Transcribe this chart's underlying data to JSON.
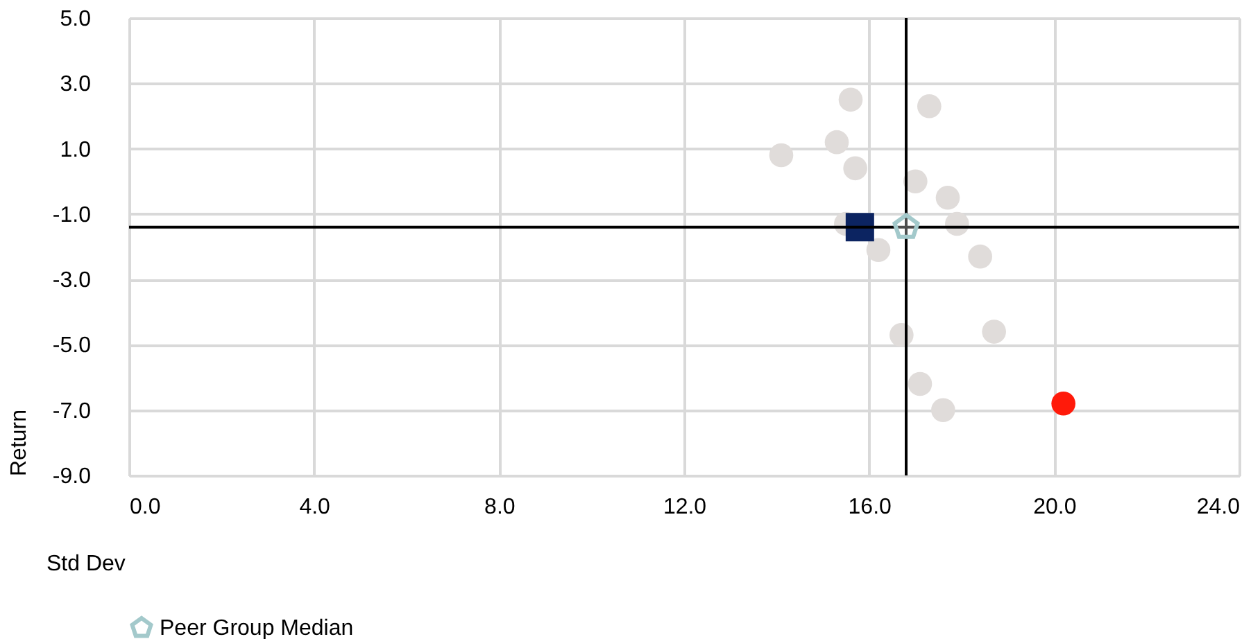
{
  "chart_data": {
    "type": "scatter",
    "xlabel": "Std Dev",
    "ylabel": "Return",
    "xlim": [
      0,
      24
    ],
    "ylim": [
      -9,
      5
    ],
    "xticks": [
      {
        "value": 0,
        "label": "0.0"
      },
      {
        "value": 4,
        "label": "4.0"
      },
      {
        "value": 8,
        "label": "8.0"
      },
      {
        "value": 12,
        "label": "12.0"
      },
      {
        "value": 16,
        "label": "16.0"
      },
      {
        "value": 20,
        "label": "20.0"
      },
      {
        "value": 24,
        "label": "24.0"
      }
    ],
    "yticks": [
      {
        "value": 5,
        "label": "5.0"
      },
      {
        "value": 3,
        "label": "3.0"
      },
      {
        "value": 1,
        "label": "1.0"
      },
      {
        "value": -1,
        "label": "-1.0"
      },
      {
        "value": -3,
        "label": "-3.0"
      },
      {
        "value": -5,
        "label": "-5.0"
      },
      {
        "value": -7,
        "label": "-7.0"
      },
      {
        "value": -9,
        "label": "-9.0"
      }
    ],
    "grid": true,
    "legend": "bottom",
    "ref_lines": [
      {
        "axis": "x",
        "value": 16.8,
        "color": "#000000"
      },
      {
        "axis": "y",
        "value": -1.4,
        "color": "#000000"
      }
    ],
    "series": [
      {
        "color": "#e0dcda",
        "marker": "circle",
        "x": [
          14.1,
          15.6,
          17.3,
          15.3,
          15.7,
          17.0,
          17.7,
          17.9,
          18.4,
          16.2,
          15.5,
          16.7,
          18.7,
          17.1,
          17.6
        ],
        "values": [
          0.8,
          2.5,
          2.3,
          1.2,
          0.4,
          0.0,
          -0.5,
          -1.3,
          -2.3,
          -2.1,
          -1.3,
          -4.7,
          -4.6,
          -6.2,
          -7.0
        ]
      },
      {
        "color": "#0c2461",
        "marker": "square",
        "x": [
          15.8
        ],
        "values": [
          -1.4
        ]
      },
      {
        "color": "#ff1a0a",
        "marker": "circle",
        "x": [
          20.2
        ],
        "values": [
          -6.8
        ]
      },
      {
        "name": "Peer Group Median",
        "color": "#a3c9cb",
        "x": [
          16.8
        ],
        "values": [
          -1.4
        ]
      }
    ]
  }
}
